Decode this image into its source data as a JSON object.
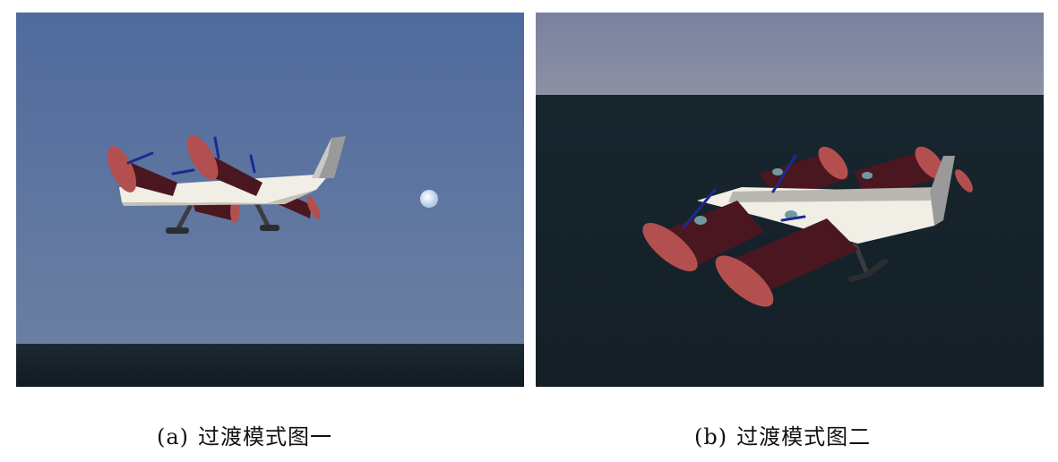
{
  "figure": {
    "panels": [
      {
        "id": "a",
        "caption_tag": "(a)",
        "caption_text": "过渡模式图一"
      },
      {
        "id": "b",
        "caption_tag": "(b)",
        "caption_text": "过渡模式图二"
      }
    ]
  },
  "colors": {
    "sky_a": "#566f9c",
    "sky_b": "#858aa1",
    "sea": "#16232b",
    "fuselage": "#f1eee6",
    "nacelle": "#4a1720",
    "propeller_disk": "#b3504f",
    "blade": "#1c2a8e",
    "landing_gear": "#3a3d40"
  }
}
